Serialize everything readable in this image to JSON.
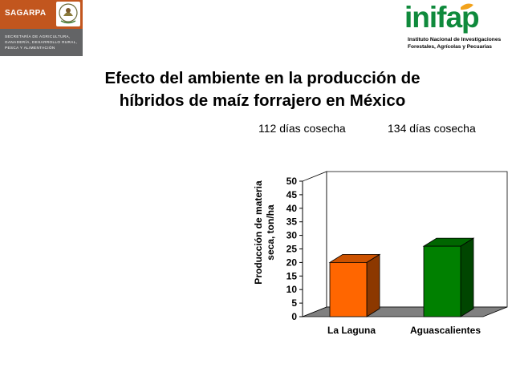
{
  "header": {
    "agency_name": "SAGARPA",
    "agency_subtitle": "SECRETARÍA DE AGRICULTURA, GANADERÍA, DESARROLLO RURAL, PESCA Y ALIMENTACIÓN",
    "institute_logo": "inifap",
    "institute_name_line1": "Instituto Nacional de Investigaciones",
    "institute_name_line2": "Forestales, Agrícolas y Pecuarias"
  },
  "slide": {
    "title_line1": "Efecto del ambiente en la producción de",
    "title_line2": "híbridos de maíz forrajero en México",
    "label_laguna": "112 días cosecha",
    "label_aguascalientes": "134 días cosecha"
  },
  "chart_data": {
    "type": "bar",
    "categories": [
      "La Laguna",
      "Aguascalientes"
    ],
    "values": [
      20,
      26
    ],
    "ylabel_line1": "Producción de materia",
    "ylabel_line2": "seca, ton/ha",
    "ylim": [
      0,
      50
    ],
    "yticks": [
      "0",
      "5",
      "10",
      "15",
      "20",
      "25",
      "30",
      "35",
      "40",
      "45",
      "50"
    ],
    "colors": [
      "#ff6600",
      "#008000"
    ],
    "grid": false
  }
}
